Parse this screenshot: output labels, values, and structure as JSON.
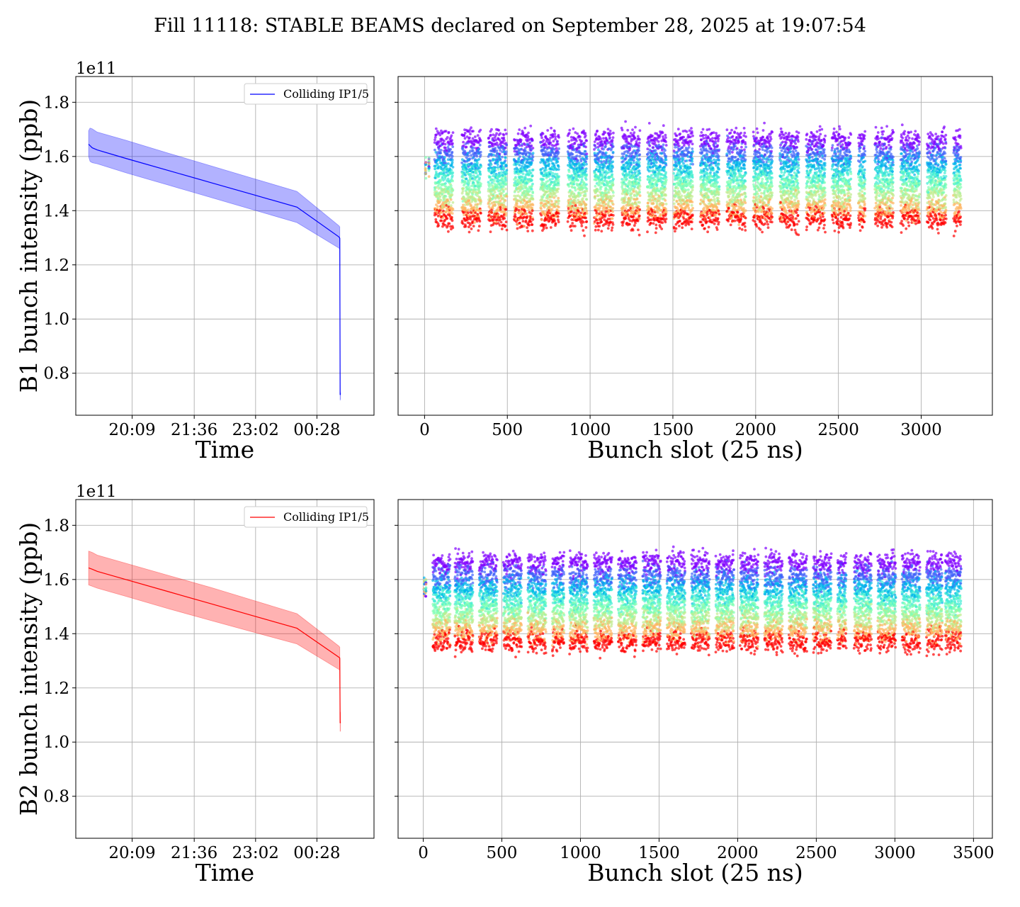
{
  "figure": {
    "title": "Fill 11118: STABLE BEAMS declared on September 28, 2025 at 19:07:54"
  },
  "chart_data": [
    {
      "id": "b1-time",
      "type": "line",
      "title": "",
      "xlabel": "Time",
      "ylabel": "B1 bunch intensity (ppb)",
      "y_offset_label": "1e11",
      "x_tick_labels": [
        "20:09",
        "21:36",
        "23:02",
        "00:28"
      ],
      "x_tick_minutes": [
        1209,
        1296,
        1382,
        1468
      ],
      "xlim_minutes": [
        1130,
        1548
      ],
      "ylim": [
        0.645,
        1.895
      ],
      "yticks": [
        0.8,
        1.0,
        1.2,
        1.4,
        1.6,
        1.8
      ],
      "grid": true,
      "legend": {
        "location": "top-right",
        "entries": [
          "Colliding IP1/5"
        ]
      },
      "color": "#0000ff",
      "series": [
        {
          "name": "Colliding IP1/5",
          "x_minutes": [
            1148,
            1150,
            1153,
            1160,
            1200,
            1260,
            1320,
            1380,
            1440,
            1499,
            1500,
            1500.5,
            1501
          ],
          "mean": [
            1.645,
            1.64,
            1.632,
            1.624,
            1.593,
            1.548,
            1.503,
            1.458,
            1.413,
            1.303,
            1.298,
            0.72,
            0.725
          ],
          "upper": [
            1.695,
            1.705,
            1.702,
            1.69,
            1.66,
            1.612,
            1.565,
            1.518,
            1.471,
            1.344,
            1.34,
            0.73,
            0.73
          ],
          "lower": [
            1.6,
            1.582,
            1.577,
            1.573,
            1.54,
            1.494,
            1.448,
            1.402,
            1.356,
            1.262,
            1.255,
            0.7,
            0.705
          ]
        }
      ]
    },
    {
      "id": "b1-slots",
      "type": "scatter",
      "title": "",
      "xlabel": "Bunch slot (25 ns)",
      "ylabel": "",
      "xlim": [
        -160,
        3430
      ],
      "ylim": [
        0.645,
        1.895
      ],
      "xticks": [
        0,
        500,
        1000,
        1500,
        2000,
        2500,
        3000
      ],
      "yticks": [
        0.8,
        1.0,
        1.2,
        1.4,
        1.6,
        1.8
      ],
      "grid": true,
      "colormap": "rainbow",
      "levels_mean": [
        1.66,
        1.61,
        1.57,
        1.53,
        1.49,
        1.45,
        1.41,
        1.37
      ],
      "level_colors": [
        "#8000ff",
        "#4062fa",
        "#00b5eb",
        "#40ecd4",
        "#80ffb4",
        "#c0eb8d",
        "#ffb360",
        "#ff0000"
      ],
      "trains": [
        [
          60,
          170
        ],
        [
          225,
          340
        ],
        [
          385,
          495
        ],
        [
          540,
          655
        ],
        [
          700,
          810
        ],
        [
          865,
          980
        ],
        [
          1025,
          1140
        ],
        [
          1190,
          1300
        ],
        [
          1345,
          1460
        ],
        [
          1505,
          1620
        ],
        [
          1665,
          1780
        ],
        [
          1825,
          1940
        ],
        [
          1985,
          2100
        ],
        [
          2145,
          2260
        ],
        [
          2305,
          2420
        ],
        [
          2460,
          2575
        ],
        [
          2620,
          2660
        ],
        [
          2720,
          2830
        ],
        [
          2875,
          2990
        ],
        [
          3035,
          3150
        ],
        [
          3195,
          3240
        ]
      ],
      "pilot_slots": [
        5,
        25
      ]
    },
    {
      "id": "b2-time",
      "type": "line",
      "title": "",
      "xlabel": "Time",
      "ylabel": "B2 bunch intensity (ppb)",
      "y_offset_label": "1e11",
      "x_tick_labels": [
        "20:09",
        "21:36",
        "23:02",
        "00:28"
      ],
      "x_tick_minutes": [
        1209,
        1296,
        1382,
        1468
      ],
      "xlim_minutes": [
        1130,
        1548
      ],
      "ylim": [
        0.645,
        1.895
      ],
      "yticks": [
        0.8,
        1.0,
        1.2,
        1.4,
        1.6,
        1.8
      ],
      "grid": true,
      "legend": {
        "location": "top-right",
        "entries": [
          "Colliding IP1/5"
        ]
      },
      "color": "#ff0000",
      "series": [
        {
          "name": "Colliding IP1/5",
          "x_minutes": [
            1148,
            1153,
            1160,
            1200,
            1260,
            1320,
            1380,
            1440,
            1499,
            1500,
            1500.5,
            1501
          ],
          "mean": [
            1.643,
            1.638,
            1.63,
            1.6,
            1.555,
            1.51,
            1.465,
            1.42,
            1.313,
            1.31,
            1.07,
            1.075
          ],
          "upper": [
            1.705,
            1.7,
            1.69,
            1.66,
            1.615,
            1.57,
            1.522,
            1.474,
            1.354,
            1.35,
            1.11,
            1.11
          ],
          "lower": [
            1.58,
            1.575,
            1.568,
            1.538,
            1.492,
            1.448,
            1.405,
            1.362,
            1.268,
            1.265,
            1.04,
            1.04
          ]
        }
      ]
    },
    {
      "id": "b2-slots",
      "type": "scatter",
      "title": "",
      "xlabel": "Bunch slot (25 ns)",
      "ylabel": "",
      "xlim": [
        -160,
        3620
      ],
      "ylim": [
        0.645,
        1.895
      ],
      "xticks": [
        0,
        500,
        1000,
        1500,
        2000,
        2500,
        3000,
        3500
      ],
      "yticks": [
        0.8,
        1.0,
        1.2,
        1.4,
        1.6,
        1.8
      ],
      "grid": true,
      "colormap": "rainbow",
      "levels_mean": [
        1.66,
        1.61,
        1.57,
        1.53,
        1.49,
        1.45,
        1.41,
        1.37
      ],
      "level_colors": [
        "#8000ff",
        "#4062fa",
        "#00b5eb",
        "#40ecd4",
        "#80ffb4",
        "#c0eb8d",
        "#ffb360",
        "#ff0000"
      ],
      "trains": [
        [
          60,
          170
        ],
        [
          200,
          315
        ],
        [
          355,
          470
        ],
        [
          510,
          625
        ],
        [
          665,
          780
        ],
        [
          820,
          895
        ],
        [
          930,
          1045
        ],
        [
          1085,
          1200
        ],
        [
          1240,
          1355
        ],
        [
          1395,
          1510
        ],
        [
          1550,
          1665
        ],
        [
          1705,
          1820
        ],
        [
          1860,
          1975
        ],
        [
          2015,
          2130
        ],
        [
          2170,
          2285
        ],
        [
          2325,
          2440
        ],
        [
          2480,
          2595
        ],
        [
          2635,
          2690
        ],
        [
          2740,
          2850
        ],
        [
          2890,
          3005
        ],
        [
          3045,
          3160
        ],
        [
          3200,
          3300
        ],
        [
          3320,
          3420
        ]
      ],
      "pilot_slots": [
        5,
        15
      ]
    }
  ]
}
